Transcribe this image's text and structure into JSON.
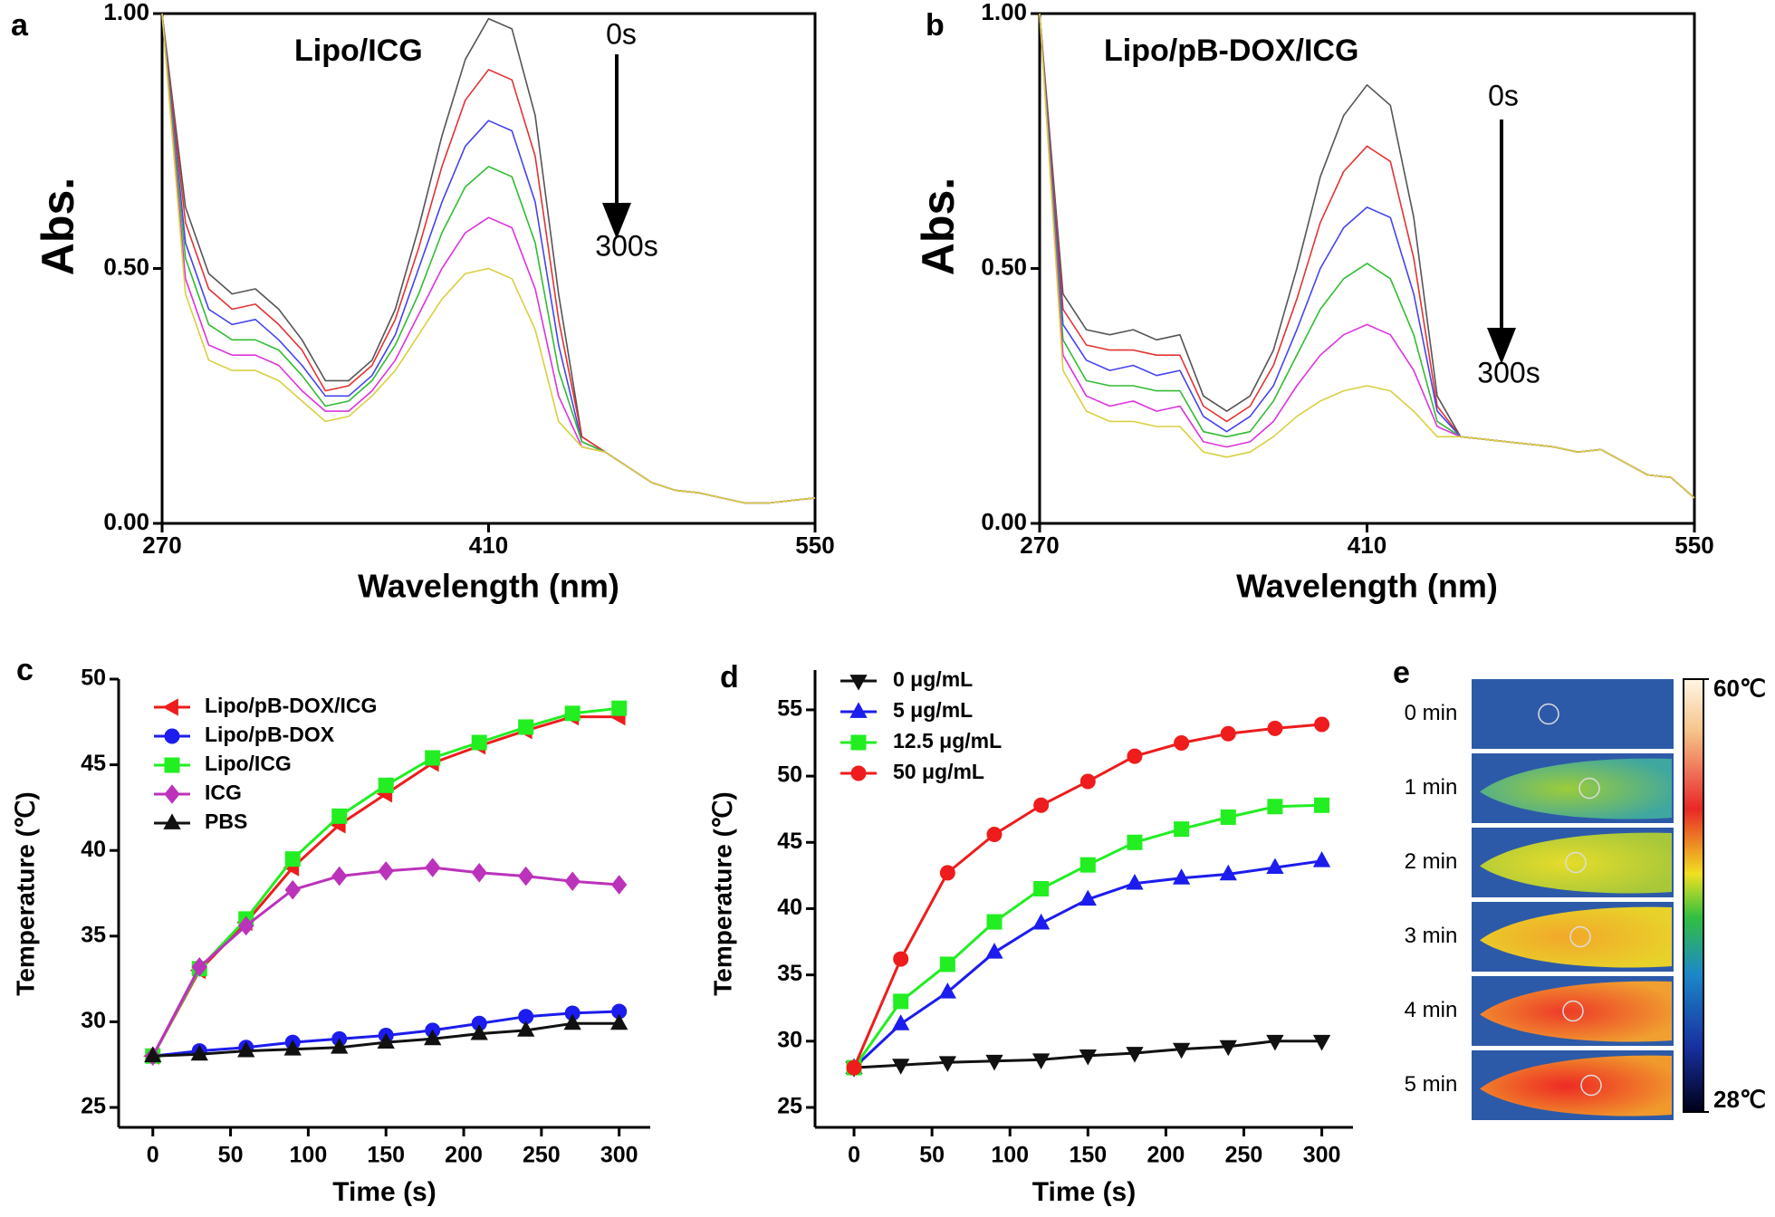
{
  "chart_data": [
    {
      "type": "line",
      "label": "a",
      "xlabel": "Wavelength (nm)",
      "ylabel": "Abs.",
      "annotations": [
        "Lipo/ICG",
        "0s",
        "300s"
      ],
      "xlim": [
        270,
        550
      ],
      "ylim": [
        0,
        1
      ],
      "xticks": [
        270,
        410,
        550
      ],
      "yticks": [
        {
          "value": 0,
          "label": "0.00"
        },
        {
          "value": 0.5,
          "label": "0.50"
        },
        {
          "value": 1,
          "label": "1.00"
        }
      ],
      "x": [
        270,
        280,
        290,
        300,
        310,
        320,
        330,
        340,
        350,
        360,
        370,
        380,
        390,
        400,
        410,
        420,
        430,
        440,
        450,
        460,
        470,
        480,
        490,
        500,
        510,
        520,
        530,
        540,
        550
      ],
      "series": [
        {
          "color": "#555555",
          "values": [
            1.0,
            0.62,
            0.49,
            0.45,
            0.46,
            0.42,
            0.36,
            0.28,
            0.28,
            0.32,
            0.42,
            0.58,
            0.76,
            0.91,
            0.99,
            0.97,
            0.8,
            0.45,
            0.17,
            0.14,
            0.11,
            0.08,
            0.065,
            0.06,
            0.05,
            0.04,
            0.04,
            0.045,
            0.05
          ]
        },
        {
          "color": "#e33333",
          "values": [
            1.0,
            0.59,
            0.46,
            0.42,
            0.43,
            0.39,
            0.34,
            0.26,
            0.27,
            0.31,
            0.4,
            0.54,
            0.7,
            0.83,
            0.89,
            0.87,
            0.72,
            0.4,
            0.17,
            0.14,
            0.11,
            0.08,
            0.065,
            0.06,
            0.05,
            0.04,
            0.04,
            0.045,
            0.05
          ]
        },
        {
          "color": "#4444ee",
          "values": [
            1.0,
            0.55,
            0.42,
            0.39,
            0.4,
            0.36,
            0.31,
            0.25,
            0.25,
            0.29,
            0.37,
            0.5,
            0.63,
            0.74,
            0.79,
            0.77,
            0.63,
            0.35,
            0.16,
            0.14,
            0.11,
            0.08,
            0.065,
            0.06,
            0.05,
            0.04,
            0.04,
            0.045,
            0.05
          ]
        },
        {
          "color": "#33bb33",
          "values": [
            1.0,
            0.52,
            0.39,
            0.36,
            0.36,
            0.34,
            0.29,
            0.23,
            0.24,
            0.28,
            0.35,
            0.45,
            0.57,
            0.66,
            0.7,
            0.68,
            0.55,
            0.3,
            0.16,
            0.14,
            0.11,
            0.08,
            0.065,
            0.06,
            0.05,
            0.04,
            0.04,
            0.045,
            0.05
          ]
        },
        {
          "color": "#dd33dd",
          "values": [
            1.0,
            0.48,
            0.35,
            0.33,
            0.33,
            0.31,
            0.26,
            0.22,
            0.22,
            0.26,
            0.32,
            0.41,
            0.5,
            0.57,
            0.6,
            0.58,
            0.46,
            0.25,
            0.15,
            0.14,
            0.11,
            0.08,
            0.065,
            0.06,
            0.05,
            0.04,
            0.04,
            0.045,
            0.05
          ]
        },
        {
          "color": "#d8d040",
          "values": [
            1.0,
            0.45,
            0.32,
            0.3,
            0.3,
            0.28,
            0.24,
            0.2,
            0.21,
            0.25,
            0.3,
            0.37,
            0.44,
            0.49,
            0.5,
            0.48,
            0.38,
            0.2,
            0.15,
            0.14,
            0.11,
            0.08,
            0.065,
            0.06,
            0.05,
            0.04,
            0.04,
            0.045,
            0.05
          ]
        }
      ]
    },
    {
      "type": "line",
      "label": "b",
      "xlabel": "Wavelength (nm)",
      "ylabel": "Abs.",
      "annotations": [
        "Lipo/pB-DOX/ICG",
        "0s",
        "300s"
      ],
      "xlim": [
        270,
        550
      ],
      "ylim": [
        0,
        1
      ],
      "xticks": [
        270,
        410,
        550
      ],
      "yticks": [
        {
          "value": 0,
          "label": "0.00"
        },
        {
          "value": 0.5,
          "label": "0.50"
        },
        {
          "value": 1,
          "label": "1.00"
        }
      ],
      "x": [
        270,
        280,
        290,
        300,
        310,
        320,
        330,
        340,
        350,
        360,
        370,
        380,
        390,
        400,
        410,
        420,
        430,
        440,
        450,
        460,
        470,
        480,
        490,
        500,
        510,
        520,
        530,
        540,
        550
      ],
      "series": [
        {
          "color": "#555555",
          "values": [
            1.0,
            0.45,
            0.38,
            0.37,
            0.38,
            0.36,
            0.37,
            0.25,
            0.22,
            0.25,
            0.34,
            0.5,
            0.68,
            0.8,
            0.86,
            0.82,
            0.6,
            0.25,
            0.17,
            0.165,
            0.16,
            0.155,
            0.15,
            0.14,
            0.145,
            0.12,
            0.095,
            0.09,
            0.05
          ]
        },
        {
          "color": "#e33333",
          "values": [
            1.0,
            0.42,
            0.35,
            0.34,
            0.34,
            0.33,
            0.33,
            0.23,
            0.2,
            0.23,
            0.31,
            0.44,
            0.59,
            0.69,
            0.74,
            0.71,
            0.52,
            0.23,
            0.17,
            0.165,
            0.16,
            0.155,
            0.15,
            0.14,
            0.145,
            0.12,
            0.095,
            0.09,
            0.05
          ]
        },
        {
          "color": "#4444ee",
          "values": [
            1.0,
            0.39,
            0.32,
            0.3,
            0.31,
            0.29,
            0.3,
            0.21,
            0.18,
            0.21,
            0.27,
            0.38,
            0.5,
            0.58,
            0.62,
            0.6,
            0.45,
            0.22,
            0.17,
            0.165,
            0.16,
            0.155,
            0.15,
            0.14,
            0.145,
            0.12,
            0.095,
            0.09,
            0.05
          ]
        },
        {
          "color": "#33bb33",
          "values": [
            1.0,
            0.36,
            0.28,
            0.27,
            0.27,
            0.26,
            0.26,
            0.18,
            0.17,
            0.18,
            0.24,
            0.33,
            0.42,
            0.48,
            0.51,
            0.48,
            0.37,
            0.2,
            0.17,
            0.165,
            0.16,
            0.155,
            0.15,
            0.14,
            0.145,
            0.12,
            0.095,
            0.09,
            0.05
          ]
        },
        {
          "color": "#dd33dd",
          "values": [
            1.0,
            0.33,
            0.25,
            0.23,
            0.24,
            0.22,
            0.23,
            0.16,
            0.15,
            0.16,
            0.2,
            0.27,
            0.33,
            0.37,
            0.39,
            0.37,
            0.3,
            0.19,
            0.17,
            0.165,
            0.16,
            0.155,
            0.15,
            0.14,
            0.145,
            0.12,
            0.095,
            0.09,
            0.05
          ]
        },
        {
          "color": "#d8d040",
          "values": [
            1.0,
            0.3,
            0.22,
            0.2,
            0.2,
            0.19,
            0.19,
            0.14,
            0.13,
            0.14,
            0.17,
            0.21,
            0.24,
            0.26,
            0.27,
            0.26,
            0.22,
            0.17,
            0.17,
            0.165,
            0.16,
            0.155,
            0.15,
            0.14,
            0.145,
            0.12,
            0.095,
            0.09,
            0.05
          ]
        }
      ]
    },
    {
      "type": "line",
      "label": "c",
      "xlabel": "Time (s)",
      "ylabel": "Temperature (℃)",
      "xlim": [
        -22,
        320
      ],
      "ylim": [
        25,
        50
      ],
      "xticks": [
        0,
        50,
        100,
        150,
        200,
        250,
        300
      ],
      "yticks": [
        25,
        30,
        35,
        40,
        45,
        50
      ],
      "x": [
        0,
        30,
        60,
        90,
        120,
        150,
        180,
        210,
        240,
        270,
        300
      ],
      "series": [
        {
          "name": "Lipo/pB-DOX/ICG",
          "color": "#ee1c1c",
          "marker": "triangle-left",
          "values": [
            28,
            33,
            35.8,
            39,
            41.5,
            43.3,
            45.1,
            46.1,
            47,
            47.8,
            47.8
          ]
        },
        {
          "name": "Lipo/pB-DOX",
          "color": "#1c1cee",
          "marker": "circle",
          "values": [
            28,
            28.3,
            28.5,
            28.8,
            29,
            29.2,
            29.5,
            29.9,
            30.3,
            30.5,
            30.6
          ]
        },
        {
          "name": "Lipo/ICG",
          "color": "#22ee22",
          "marker": "square",
          "values": [
            28,
            33.1,
            36,
            39.5,
            42,
            43.8,
            45.4,
            46.3,
            47.2,
            48,
            48.3
          ]
        },
        {
          "name": "ICG",
          "color": "#bb33bb",
          "marker": "diamond",
          "values": [
            28,
            33.2,
            35.6,
            37.7,
            38.5,
            38.8,
            39,
            38.7,
            38.5,
            38.2,
            38
          ]
        },
        {
          "name": "PBS",
          "color": "#111111",
          "marker": "triangle-up",
          "values": [
            28,
            28.1,
            28.3,
            28.4,
            28.5,
            28.8,
            29,
            29.3,
            29.5,
            29.9,
            29.9
          ]
        }
      ]
    },
    {
      "type": "line",
      "label": "d",
      "xlabel": "Time (s)",
      "ylabel": "Temperature (℃)",
      "xlim": [
        -25,
        320
      ],
      "ylim": [
        25,
        58
      ],
      "xticks": [
        0,
        50,
        100,
        150,
        200,
        250,
        300
      ],
      "yticks": [
        25,
        30,
        35,
        40,
        45,
        50,
        55
      ],
      "x": [
        0,
        30,
        60,
        90,
        120,
        150,
        180,
        210,
        240,
        270,
        300
      ],
      "series": [
        {
          "name": "0 μg/mL",
          "color": "#111111",
          "marker": "triangle-down",
          "values": [
            28,
            28.2,
            28.4,
            28.5,
            28.6,
            28.9,
            29.1,
            29.4,
            29.6,
            30,
            30
          ]
        },
        {
          "name": "5 μg/mL",
          "color": "#1c1cee",
          "marker": "triangle-up",
          "values": [
            28,
            31.3,
            33.7,
            36.7,
            38.9,
            40.7,
            41.9,
            42.3,
            42.6,
            43.1,
            43.6
          ]
        },
        {
          "name": "12.5 μg/mL",
          "color": "#22ee22",
          "marker": "square",
          "values": [
            28,
            33,
            35.8,
            39,
            41.5,
            43.3,
            45,
            46,
            46.9,
            47.7,
            47.8
          ]
        },
        {
          "name": "50 μg/mL",
          "color": "#ee1c1c",
          "marker": "circle",
          "values": [
            28,
            36.2,
            42.7,
            45.6,
            47.8,
            49.6,
            51.5,
            52.5,
            53.2,
            53.6,
            53.9
          ]
        }
      ]
    },
    {
      "type": "image",
      "label": "e",
      "frames": [
        "0 min",
        "1 min",
        "2 min",
        "3 min",
        "4 min",
        "5 min"
      ],
      "colorbar_ticks": [
        {
          "value": 60,
          "label": "60℃"
        },
        {
          "value": 28,
          "label": "28℃"
        }
      ]
    }
  ]
}
